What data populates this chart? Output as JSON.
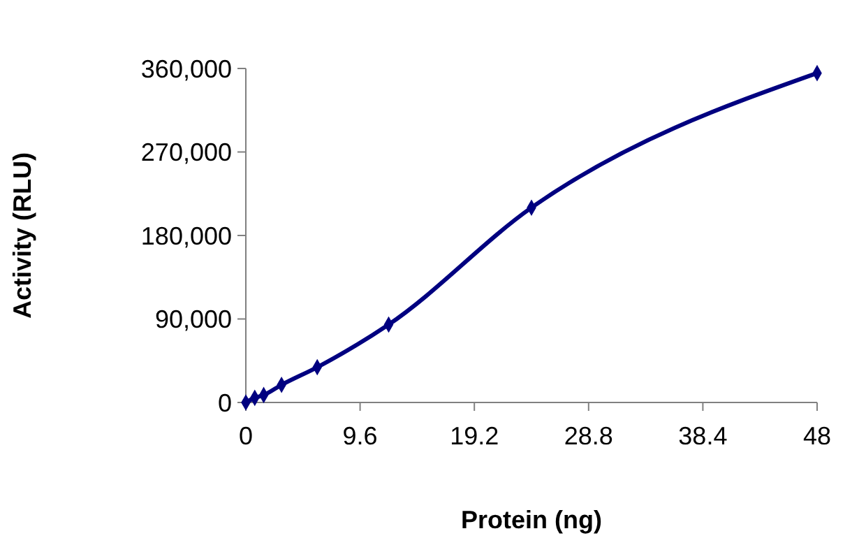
{
  "chart_data": {
    "type": "line",
    "xlabel": "Protein (ng)",
    "ylabel": "Activity (RLU)",
    "x": [
      0,
      0.75,
      1.5,
      3,
      6,
      12,
      24,
      48
    ],
    "series": [
      {
        "color": "#000080",
        "values": [
          0,
          5000,
          8000,
          19000,
          38000,
          84000,
          210000,
          355000
        ]
      }
    ],
    "xlim": [
      0,
      48
    ],
    "xticks": [
      0,
      9.6,
      19.2,
      28.8,
      38.4,
      48
    ],
    "ylim": [
      0,
      360000
    ],
    "yticks": [
      {
        "value": 0,
        "label": "0"
      },
      {
        "value": 90000,
        "label": "90,000"
      },
      {
        "value": 180000,
        "label": "180,000"
      },
      {
        "value": 270000,
        "label": "270,000"
      },
      {
        "value": 360000,
        "label": "360,000"
      }
    ],
    "marker": "diamond",
    "line_style": "solid",
    "grid": false
  }
}
